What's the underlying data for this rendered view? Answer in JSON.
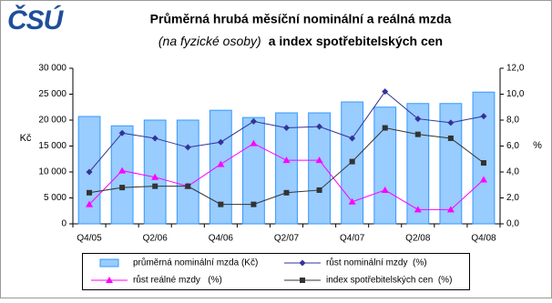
{
  "logo": "ČSÚ",
  "chart_data": {
    "type": "bar-line",
    "title": "Průměrná hrubá měsíční nominální a reálná mzda",
    "subtitle": [
      "(na fyzické osoby)",
      "a index spotřebitelských cen"
    ],
    "ylabel": "Kč",
    "y2label": "%",
    "categories": [
      "Q4/05",
      null,
      "Q2/06",
      null,
      "Q4/06",
      null,
      "Q2/07",
      null,
      "Q4/07",
      null,
      "Q2/08",
      null,
      "Q4/08"
    ],
    "ylim": [
      0,
      30000
    ],
    "yticks": [
      {
        "value": 0,
        "label": "0"
      },
      {
        "value": 5000,
        "label": "5 000"
      },
      {
        "value": 10000,
        "label": "10 000"
      },
      {
        "value": 15000,
        "label": "15 000"
      },
      {
        "value": 20000,
        "label": "20 000"
      },
      {
        "value": 25000,
        "label": "25 000"
      },
      {
        "value": 30000,
        "label": "30 000"
      }
    ],
    "y2lim": [
      0,
      12
    ],
    "y2ticks": [
      {
        "value": 0,
        "label": "0,0"
      },
      {
        "value": 2,
        "label": "2,0"
      },
      {
        "value": 4,
        "label": "4,0"
      },
      {
        "value": 6,
        "label": "6,0"
      },
      {
        "value": 8,
        "label": "8,0"
      },
      {
        "value": 10,
        "label": "10,0"
      },
      {
        "value": 12,
        "label": "12,0"
      }
    ],
    "series": [
      {
        "name": "průměrná nominální mzda (Kč)",
        "type": "bar",
        "color": "#99ccff",
        "values": [
          20700,
          18900,
          20000,
          20000,
          21900,
          20500,
          21400,
          21400,
          23500,
          22500,
          23200,
          23200,
          25400
        ]
      },
      {
        "name": "růst nominální mzdy  (%)",
        "type": "line",
        "marker": "diamond",
        "axis": "y2",
        "color": "#333399",
        "values": [
          4.0,
          7.0,
          6.6,
          5.9,
          6.3,
          7.9,
          7.4,
          7.5,
          6.6,
          10.2,
          8.1,
          7.8,
          8.3
        ]
      },
      {
        "name": "růst reálné mzdy   (%)",
        "type": "line",
        "marker": "triangle",
        "axis": "y2",
        "color": "#ff00ff",
        "values": [
          1.5,
          4.1,
          3.6,
          2.9,
          4.6,
          6.2,
          4.9,
          4.9,
          1.7,
          2.6,
          1.1,
          1.1,
          3.4
        ]
      },
      {
        "name": "index spotřebitelských cen  (%)",
        "type": "line",
        "marker": "square",
        "axis": "y2",
        "color": "#333333",
        "values": [
          2.4,
          2.8,
          2.9,
          2.9,
          1.5,
          1.5,
          2.4,
          2.6,
          4.8,
          7.4,
          6.9,
          6.6,
          4.7
        ]
      }
    ]
  }
}
